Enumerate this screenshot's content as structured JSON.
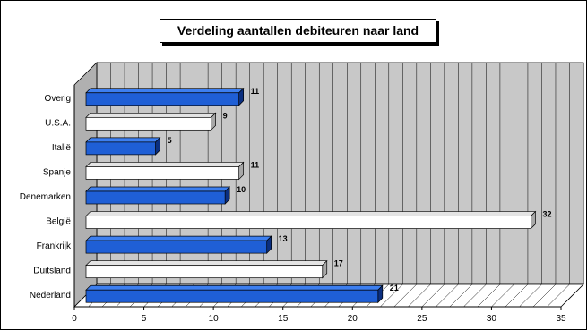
{
  "chart_data": {
    "type": "bar",
    "orientation": "horizontal",
    "title": "Verdeling aantallen debiteuren naar land",
    "categories": [
      "Nederland",
      "Duitsland",
      "Frankrijk",
      "België",
      "Denemarken",
      "Spanje",
      "Italië",
      "U.S.A.",
      "Overig"
    ],
    "values": [
      21,
      17,
      13,
      32,
      10,
      11,
      5,
      9,
      11
    ],
    "xlim": [
      0,
      35
    ],
    "xticks": [
      0,
      5,
      10,
      15,
      20,
      25,
      30,
      35
    ],
    "grid": true,
    "legend": "none",
    "colors": {
      "blue": "#1f5fd6",
      "blue_top": "#3d7ff0",
      "blue_side": "#0b2f80",
      "white": "#ffffff",
      "white_top": "#e4e4e4",
      "white_side": "#a8a8a8",
      "wall": "#c8c8c8",
      "floor": "#ffffff"
    },
    "bar_styles": [
      "blue",
      "white",
      "blue",
      "white",
      "blue",
      "white",
      "blue",
      "white",
      "blue"
    ]
  }
}
